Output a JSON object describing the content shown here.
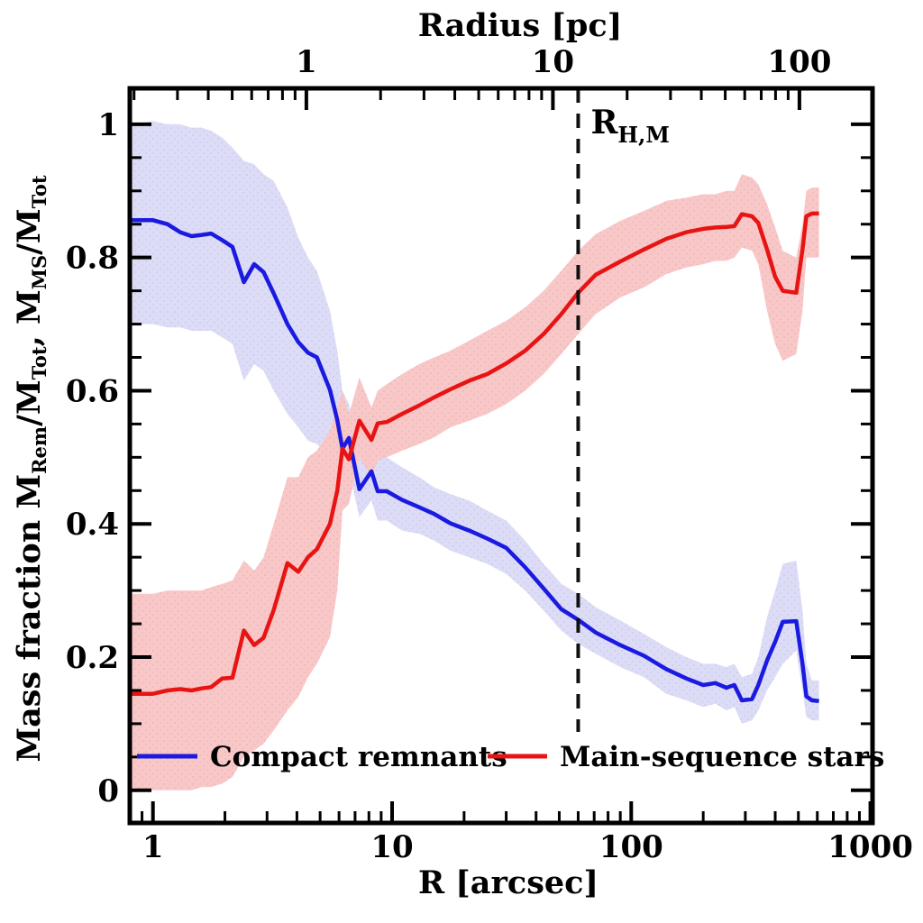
{
  "chart_data": {
    "type": "line",
    "title": "",
    "x_axis_bottom": {
      "label": "R [arcsec]",
      "scale": "log",
      "range_arcsec": [
        0.8,
        1020
      ],
      "ticks": [
        {
          "v": 1,
          "t": "1"
        },
        {
          "v": 10,
          "t": "10"
        },
        {
          "v": 100,
          "t": "100"
        },
        {
          "v": 1000,
          "t": "1000"
        }
      ]
    },
    "x_axis_top": {
      "label": "Radius [pc]",
      "scale": "log",
      "range_pc": [
        0.19,
        200
      ],
      "arcsec_per_pc": 4.4,
      "ticks": [
        {
          "v": 1,
          "t": "1"
        },
        {
          "v": 10,
          "t": "10"
        },
        {
          "v": 100,
          "t": "100"
        }
      ]
    },
    "y_axis": {
      "label_plain": "Mass fraction  M_Rem/M_Tot,  M_MS/M_Tot",
      "range": [
        -0.049,
        1.054
      ],
      "minor_step": 0.05,
      "ticks": [
        {
          "v": 0,
          "t": "0"
        },
        {
          "v": 0.2,
          "t": "0.2"
        },
        {
          "v": 0.4,
          "t": "0.4"
        },
        {
          "v": 0.6,
          "t": "0.6"
        },
        {
          "v": 0.8,
          "t": "0.8"
        },
        {
          "v": 1,
          "t": "1"
        }
      ]
    },
    "y_label_segments": [
      {
        "t": "Mass fraction   M"
      },
      {
        "t": "Rem",
        "sub": true
      },
      {
        "t": "/M"
      },
      {
        "t": "Tot",
        "sub": true
      },
      {
        "t": ",  M"
      },
      {
        "t": "MS",
        "sub": true
      },
      {
        "t": "/M"
      },
      {
        "t": "Tot",
        "sub": true
      }
    ],
    "reference_line": {
      "R_arcsec": 60,
      "label_main": "R",
      "label_sub": "H,M",
      "style": "dashed",
      "color": "#111111"
    },
    "legend_position": "bottom-inside",
    "series": [
      {
        "name": "Compact remnants",
        "color": "#1a1ae0",
        "band_color": "#dcdcf6",
        "band_dot_color": "#c9c9ee",
        "points": [
          [
            0.81,
            0.856,
            0.7,
            1.0
          ],
          [
            1.0,
            0.856,
            0.7,
            1.005
          ],
          [
            1.15,
            0.85,
            0.695,
            1.0
          ],
          [
            1.3,
            0.838,
            0.695,
            1.0
          ],
          [
            1.45,
            0.832,
            0.69,
            0.995
          ],
          [
            1.6,
            0.834,
            0.69,
            0.995
          ],
          [
            1.75,
            0.836,
            0.69,
            0.99
          ],
          [
            1.95,
            0.826,
            0.68,
            0.98
          ],
          [
            2.15,
            0.816,
            0.67,
            0.965
          ],
          [
            2.4,
            0.763,
            0.615,
            0.945
          ],
          [
            2.65,
            0.79,
            0.64,
            0.94
          ],
          [
            2.9,
            0.778,
            0.63,
            0.925
          ],
          [
            3.2,
            0.746,
            0.6,
            0.915
          ],
          [
            3.65,
            0.7,
            0.565,
            0.875
          ],
          [
            4.05,
            0.673,
            0.545,
            0.83
          ],
          [
            4.45,
            0.657,
            0.525,
            0.8
          ],
          [
            4.85,
            0.65,
            0.52,
            0.78
          ],
          [
            5.5,
            0.601,
            0.5,
            0.72
          ],
          [
            5.9,
            0.556,
            0.485,
            0.66
          ],
          [
            6.2,
            0.513,
            0.475,
            0.6
          ],
          [
            6.6,
            0.529,
            0.48,
            0.58
          ],
          [
            7.3,
            0.452,
            0.41,
            0.5
          ],
          [
            8.2,
            0.479,
            0.435,
            0.525
          ],
          [
            8.7,
            0.449,
            0.405,
            0.5
          ],
          [
            9.5,
            0.449,
            0.405,
            0.5
          ],
          [
            11,
            0.436,
            0.39,
            0.485
          ],
          [
            13,
            0.425,
            0.385,
            0.47
          ],
          [
            15,
            0.415,
            0.375,
            0.455
          ],
          [
            17.5,
            0.401,
            0.36,
            0.445
          ],
          [
            21,
            0.39,
            0.35,
            0.435
          ],
          [
            25,
            0.378,
            0.34,
            0.42
          ],
          [
            30,
            0.364,
            0.325,
            0.405
          ],
          [
            36,
            0.335,
            0.3,
            0.375
          ],
          [
            43,
            0.303,
            0.27,
            0.34
          ],
          [
            51,
            0.272,
            0.24,
            0.31
          ],
          [
            60,
            0.256,
            0.22,
            0.295
          ],
          [
            71,
            0.237,
            0.205,
            0.275
          ],
          [
            90,
            0.218,
            0.185,
            0.255
          ],
          [
            113,
            0.202,
            0.17,
            0.235
          ],
          [
            140,
            0.182,
            0.145,
            0.215
          ],
          [
            170,
            0.168,
            0.135,
            0.2
          ],
          [
            200,
            0.158,
            0.125,
            0.19
          ],
          [
            225,
            0.161,
            0.13,
            0.19
          ],
          [
            250,
            0.154,
            0.12,
            0.185
          ],
          [
            270,
            0.158,
            0.125,
            0.19
          ],
          [
            290,
            0.135,
            0.1,
            0.17
          ],
          [
            320,
            0.137,
            0.105,
            0.175
          ],
          [
            340,
            0.158,
            0.12,
            0.2
          ],
          [
            370,
            0.195,
            0.15,
            0.26
          ],
          [
            400,
            0.223,
            0.17,
            0.3
          ],
          [
            430,
            0.253,
            0.19,
            0.34
          ],
          [
            490,
            0.254,
            0.21,
            0.345
          ],
          [
            520,
            0.19,
            0.15,
            0.27
          ],
          [
            540,
            0.141,
            0.11,
            0.19
          ],
          [
            570,
            0.135,
            0.105,
            0.165
          ],
          [
            610,
            0.134,
            0.105,
            0.165
          ]
        ]
      },
      {
        "name": "Main-sequence stars",
        "color": "#e81414",
        "band_color": "#f8c8c8",
        "band_dot_color": "#f0b2b2",
        "points": [
          [
            0.81,
            0.145,
            0.0,
            0.295
          ],
          [
            1.0,
            0.145,
            0.0,
            0.295
          ],
          [
            1.15,
            0.15,
            0.0,
            0.3
          ],
          [
            1.3,
            0.152,
            0.0,
            0.3
          ],
          [
            1.45,
            0.15,
            0.0,
            0.3
          ],
          [
            1.6,
            0.153,
            0.005,
            0.3
          ],
          [
            1.75,
            0.155,
            0.005,
            0.305
          ],
          [
            1.95,
            0.168,
            0.01,
            0.31
          ],
          [
            2.15,
            0.169,
            0.02,
            0.315
          ],
          [
            2.4,
            0.24,
            0.05,
            0.345
          ],
          [
            2.65,
            0.218,
            0.06,
            0.33
          ],
          [
            2.9,
            0.229,
            0.07,
            0.35
          ],
          [
            3.2,
            0.271,
            0.09,
            0.4
          ],
          [
            3.65,
            0.341,
            0.12,
            0.47
          ],
          [
            4.05,
            0.328,
            0.14,
            0.47
          ],
          [
            4.45,
            0.35,
            0.17,
            0.5
          ],
          [
            4.85,
            0.362,
            0.19,
            0.51
          ],
          [
            5.5,
            0.4,
            0.23,
            0.54
          ],
          [
            5.9,
            0.45,
            0.3,
            0.575
          ],
          [
            6.2,
            0.513,
            0.42,
            0.6
          ],
          [
            6.6,
            0.497,
            0.43,
            0.565
          ],
          [
            7.3,
            0.555,
            0.5,
            0.62
          ],
          [
            8.2,
            0.526,
            0.47,
            0.575
          ],
          [
            8.7,
            0.551,
            0.495,
            0.6
          ],
          [
            9.5,
            0.553,
            0.5,
            0.61
          ],
          [
            11,
            0.565,
            0.51,
            0.625
          ],
          [
            13,
            0.578,
            0.52,
            0.64
          ],
          [
            15,
            0.59,
            0.53,
            0.65
          ],
          [
            17.5,
            0.602,
            0.545,
            0.66
          ],
          [
            21,
            0.615,
            0.555,
            0.675
          ],
          [
            25,
            0.625,
            0.565,
            0.69
          ],
          [
            30,
            0.641,
            0.58,
            0.705
          ],
          [
            36,
            0.66,
            0.6,
            0.725
          ],
          [
            43,
            0.685,
            0.625,
            0.75
          ],
          [
            51,
            0.715,
            0.655,
            0.78
          ],
          [
            60,
            0.747,
            0.685,
            0.81
          ],
          [
            71,
            0.774,
            0.715,
            0.835
          ],
          [
            90,
            0.794,
            0.74,
            0.855
          ],
          [
            113,
            0.812,
            0.755,
            0.87
          ],
          [
            140,
            0.828,
            0.775,
            0.885
          ],
          [
            170,
            0.838,
            0.785,
            0.89
          ],
          [
            200,
            0.843,
            0.79,
            0.895
          ],
          [
            225,
            0.845,
            0.795,
            0.895
          ],
          [
            250,
            0.846,
            0.795,
            0.9
          ],
          [
            270,
            0.847,
            0.8,
            0.9
          ],
          [
            290,
            0.865,
            0.815,
            0.925
          ],
          [
            320,
            0.862,
            0.81,
            0.92
          ],
          [
            340,
            0.852,
            0.79,
            0.91
          ],
          [
            370,
            0.812,
            0.72,
            0.88
          ],
          [
            400,
            0.771,
            0.67,
            0.845
          ],
          [
            430,
            0.75,
            0.645,
            0.81
          ],
          [
            490,
            0.747,
            0.655,
            0.8
          ],
          [
            520,
            0.812,
            0.72,
            0.85
          ],
          [
            540,
            0.862,
            0.8,
            0.9
          ],
          [
            570,
            0.866,
            0.8,
            0.905
          ],
          [
            610,
            0.866,
            0.8,
            0.905
          ]
        ]
      }
    ]
  },
  "colors": {
    "axis": "#000000",
    "background": "#ffffff"
  }
}
